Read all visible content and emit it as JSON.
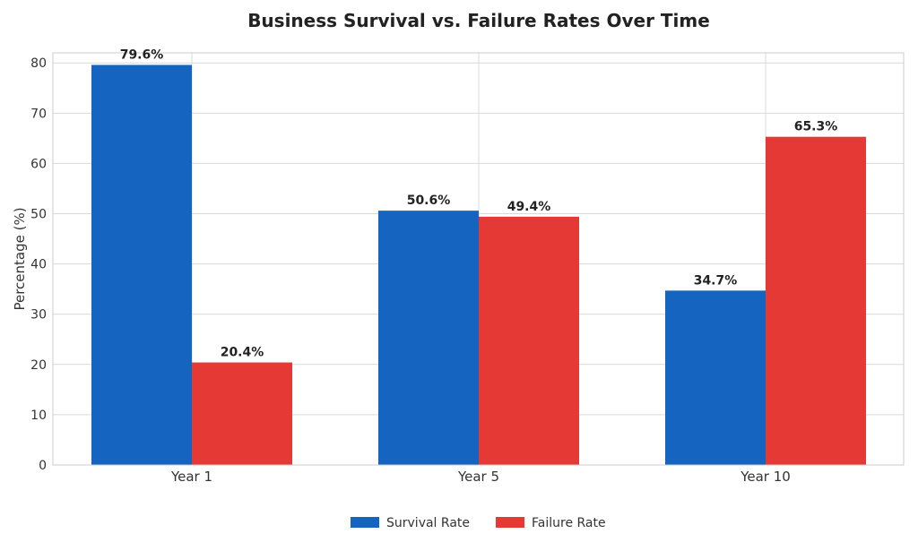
{
  "chart_data": {
    "type": "bar",
    "title": "Business Survival vs. Failure Rates Over Time",
    "xlabel": "",
    "ylabel": "Percentage (%)",
    "ylim": [
      0,
      82
    ],
    "yticks": [
      0,
      10,
      20,
      30,
      40,
      50,
      60,
      70,
      80
    ],
    "categories": [
      "Year 1",
      "Year 5",
      "Year 10"
    ],
    "series": [
      {
        "name": "Survival Rate",
        "color": "#1565c0",
        "values": [
          79.6,
          50.6,
          34.7
        ],
        "labels": [
          "79.6%",
          "50.6%",
          "34.7%"
        ]
      },
      {
        "name": "Failure Rate",
        "color": "#e53935",
        "values": [
          20.4,
          49.4,
          65.3
        ],
        "labels": [
          "20.4%",
          "49.4%",
          "65.3%"
        ]
      }
    ],
    "grid": true,
    "legend_position": "bottom-center"
  }
}
